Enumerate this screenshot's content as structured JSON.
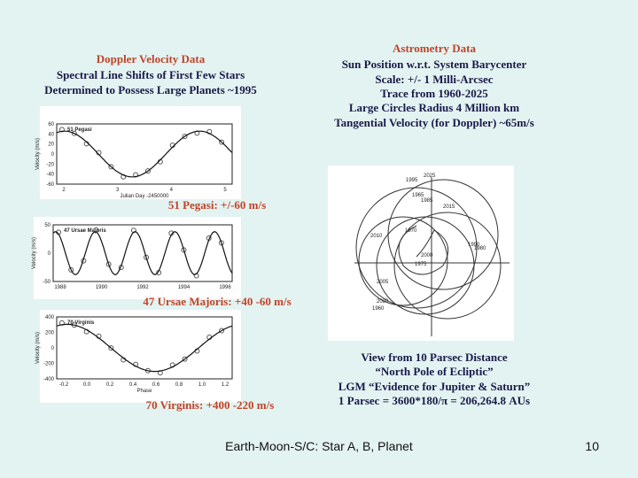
{
  "left": {
    "title": "Doppler Velocity Data",
    "lines": [
      "Spectral Line Shifts of First Few Stars",
      "Determined to Possess Large Planets ~1995"
    ]
  },
  "right": {
    "title": "Astrometry Data",
    "lines": [
      "Sun Position w.r.t. System Barycenter",
      "Scale: +/- 1 Milli-Arcsec",
      "Trace from 1960-2025",
      "Large Circles Radius 4 Million km",
      "Tangential Velocity (for Doppler) ~65m/s"
    ],
    "bottom": [
      "View from 10 Parsec Distance",
      "“North Pole of Ecliptic”",
      "LGM “Evidence for Jupiter & Saturn”",
      "1 Parsec = 3600*180/π = 206,264.8 AUs"
    ]
  },
  "plots": [
    {
      "label": "51 Pegasi",
      "caption": "51 Pegasi: +/-60 m/s",
      "ylabel": "Velocity (m/s)",
      "xlabel": "Julian Day -2450000",
      "yticks": [
        "60",
        "40",
        "20",
        "0",
        "-20",
        "-40",
        "-60"
      ],
      "xticks": [
        "2",
        "3",
        "4",
        "5"
      ]
    },
    {
      "label": "47 Ursae Majoris",
      "caption": "47 Ursae Majoris: +40 -60 m/s",
      "ylabel": "Velocity (m/s)",
      "yticks": [
        "50",
        "0",
        "-50"
      ],
      "xticks": [
        "1988",
        "1990",
        "1992",
        "1994",
        "1996"
      ]
    },
    {
      "label": "70 Virginis",
      "caption": "70 Virginis: +400 -220 m/s",
      "ylabel": "Velocity (m/s)",
      "xlabel": "Phase",
      "yticks": [
        "400",
        "200",
        "0",
        "-200",
        "-400"
      ],
      "xticks": [
        "-0.2",
        "0.0",
        "0.2",
        "0.4",
        "0.6",
        "0.8",
        "1.0",
        "1.2"
      ]
    }
  ],
  "diagram": {
    "years": [
      "1960",
      "1965",
      "1970",
      "1975",
      "1980",
      "1985",
      "1990",
      "1995",
      "2000",
      "2005",
      "2010",
      "2015",
      "2020",
      "2025"
    ]
  },
  "footer": {
    "text": "Earth-Moon-S/C: Star A, B, Planet",
    "page": "10"
  }
}
